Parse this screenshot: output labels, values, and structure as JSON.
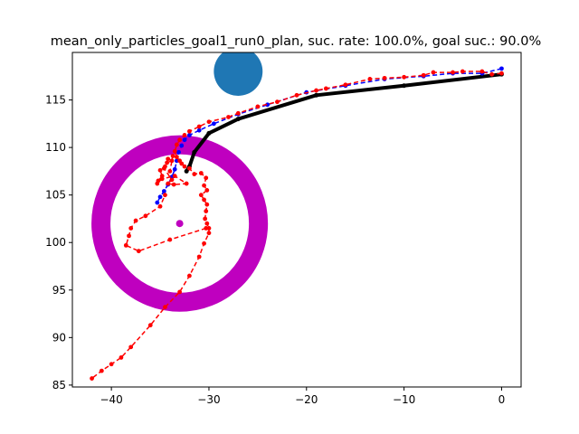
{
  "chart_data": {
    "type": "scatter",
    "title": "mean_only_particles_goal1_run0_plan, suc. rate: 100.0%, goal suc.: 90.0%",
    "xlabel": "",
    "ylabel": "",
    "xlim": [
      -44,
      2
    ],
    "ylim": [
      84.8,
      120
    ],
    "x_ticks": [
      -40,
      -30,
      -20,
      -10,
      0
    ],
    "y_ticks": [
      85,
      90,
      95,
      100,
      105,
      110,
      115
    ],
    "x_tick_labels": [
      "−40",
      "−30",
      "−20",
      "−10",
      "0"
    ],
    "y_tick_labels": [
      "85",
      "90",
      "95",
      "100",
      "105",
      "110",
      "115"
    ],
    "grid": false,
    "legend": false,
    "goal_ring": {
      "center": [
        -33,
        102
      ],
      "radius": 9,
      "color": "#bf00bf"
    },
    "goal_point": {
      "x": -33,
      "y": 102,
      "color": "#bf00bf"
    },
    "obstacle": {
      "center": [
        -27,
        118
      ],
      "radius": 2.5,
      "color": "#1f77b4"
    },
    "series": [
      {
        "style": "solid-thick",
        "color": "#000000",
        "points": [
          [
            0,
            117.7
          ],
          [
            -10,
            116.5
          ],
          [
            -19,
            115.5
          ],
          [
            -27,
            113
          ],
          [
            -30,
            111.5
          ],
          [
            -31.5,
            109.5
          ],
          [
            -32,
            108
          ],
          [
            -32.3,
            107.5
          ]
        ]
      },
      {
        "style": "dashed-dots",
        "color": "#0000ff",
        "points": [
          [
            0,
            118.3
          ],
          [
            -2,
            117.8
          ],
          [
            -5,
            117.8
          ],
          [
            -8,
            117.5
          ],
          [
            -12,
            117.2
          ],
          [
            -16,
            116.5
          ],
          [
            -20,
            115.8
          ],
          [
            -24,
            114.5
          ],
          [
            -27,
            113.5
          ],
          [
            -29.5,
            112.5
          ],
          [
            -31,
            111.8
          ],
          [
            -32,
            111.3
          ],
          [
            -32.5,
            110.8
          ],
          [
            -32.8,
            110.2
          ],
          [
            -33.1,
            109.5
          ],
          [
            -33.3,
            108.6
          ],
          [
            -33.5,
            107.7
          ],
          [
            -33.8,
            106.9
          ],
          [
            -34.2,
            106.1
          ],
          [
            -34.6,
            105.4
          ],
          [
            -35,
            104.8
          ],
          [
            -35.3,
            104.2
          ]
        ]
      },
      {
        "style": "dashed-dots",
        "color": "#ff0000",
        "points": [
          [
            0,
            117.8
          ],
          [
            -1,
            117.7
          ],
          [
            -2,
            118
          ],
          [
            -4,
            118
          ],
          [
            -5,
            117.9
          ],
          [
            -7,
            117.9
          ],
          [
            -8,
            117.6
          ],
          [
            -10,
            117.4
          ],
          [
            -12,
            117.3
          ],
          [
            -13.5,
            117.2
          ],
          [
            -16,
            116.6
          ],
          [
            -18,
            116.2
          ],
          [
            -19,
            116
          ],
          [
            -21,
            115.5
          ],
          [
            -23,
            114.8
          ],
          [
            -25,
            114.3
          ],
          [
            -27,
            113.6
          ],
          [
            -28,
            113.2
          ],
          [
            -30,
            112.7
          ],
          [
            -31,
            112.2
          ],
          [
            -32,
            111.7
          ],
          [
            -32.5,
            111.3
          ],
          [
            -33,
            110.8
          ],
          [
            -33.3,
            110.3
          ],
          [
            -33.5,
            109.6
          ],
          [
            -33.3,
            109
          ],
          [
            -33,
            108.6
          ],
          [
            -32.8,
            108.3
          ],
          [
            -32.5,
            108
          ],
          [
            -32,
            107.8
          ],
          [
            -31.5,
            107.2
          ],
          [
            -30.8,
            107.3
          ],
          [
            -30.3,
            106.8
          ],
          [
            -30.5,
            106
          ],
          [
            -30.2,
            105.5
          ],
          [
            -30.8,
            105
          ],
          [
            -30.5,
            104.5
          ],
          [
            -30.2,
            104
          ],
          [
            -30.3,
            103.3
          ],
          [
            -30.4,
            102.5
          ],
          [
            -30.2,
            102
          ],
          [
            -30,
            101.5
          ],
          [
            -30,
            101
          ],
          [
            -30.5,
            99.9
          ],
          [
            -31,
            98.5
          ],
          [
            -32,
            96.5
          ],
          [
            -33,
            94.8
          ],
          [
            -34.5,
            93.2
          ],
          [
            -36,
            91.3
          ],
          [
            -38,
            89
          ],
          [
            -39,
            87.9
          ],
          [
            -40,
            87.2
          ],
          [
            -41,
            86.5
          ],
          [
            -42,
            85.7
          ]
        ]
      },
      {
        "style": "dashed-dots",
        "color": "#ff0000",
        "points": [
          [
            -30.3,
            101.5
          ],
          [
            -34,
            100.3
          ],
          [
            -37.2,
            99.1
          ],
          [
            -38.5,
            99.7
          ],
          [
            -38.2,
            100.7
          ],
          [
            -38,
            101.5
          ],
          [
            -37.5,
            102.3
          ],
          [
            -36.5,
            102.8
          ],
          [
            -35,
            103.8
          ],
          [
            -34.5,
            105
          ]
        ]
      },
      {
        "style": "dashed-dots",
        "color": "#ff0000",
        "points": [
          [
            -35.2,
            106.5
          ],
          [
            -34.8,
            107
          ],
          [
            -35,
            107.6
          ],
          [
            -34.5,
            108
          ],
          [
            -34.3,
            108.4
          ],
          [
            -33.8,
            108.6
          ],
          [
            -34.2,
            108.8
          ],
          [
            -33.7,
            109.1
          ],
          [
            -34,
            107.5
          ],
          [
            -34.6,
            107.8
          ],
          [
            -33.8,
            106.6
          ],
          [
            -34.2,
            106.2
          ],
          [
            -33.6,
            106.1
          ],
          [
            -32.3,
            106.2
          ],
          [
            -33.5,
            107
          ],
          [
            -34.8,
            106.7
          ],
          [
            -35.3,
            106.2
          ]
        ]
      }
    ]
  }
}
